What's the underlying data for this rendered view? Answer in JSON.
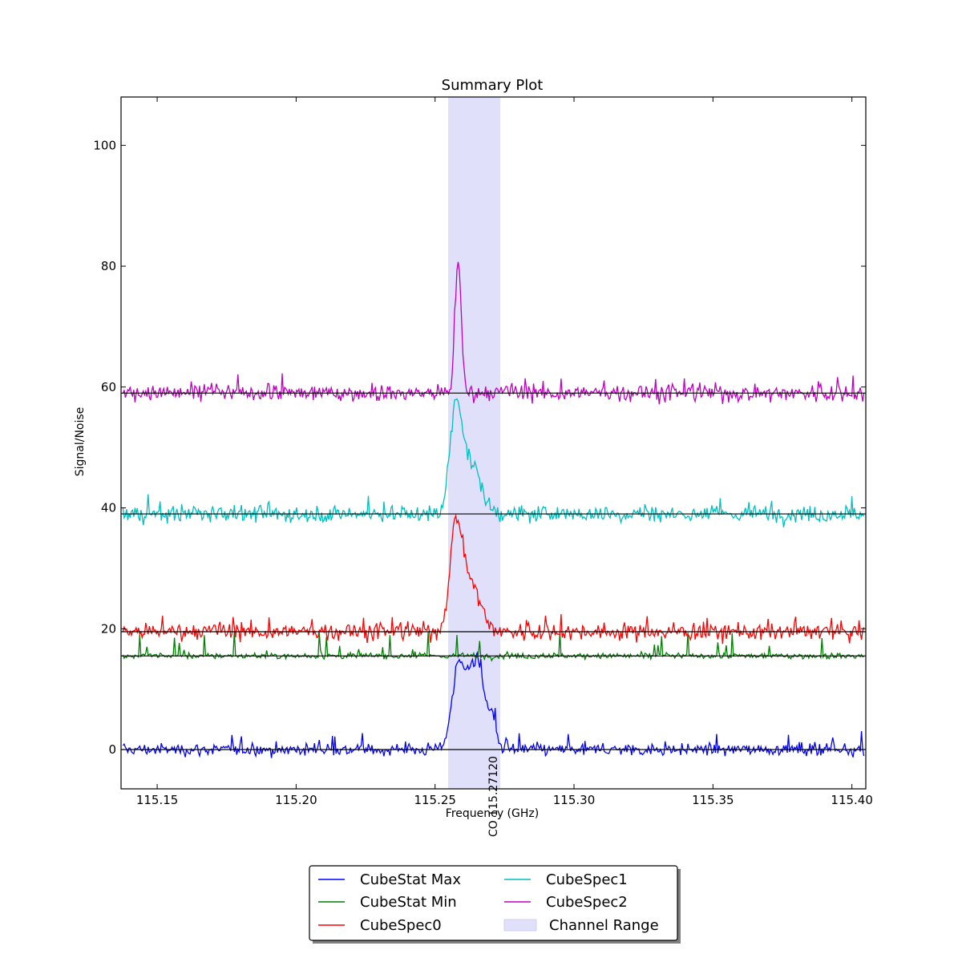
{
  "chart_data": {
    "type": "line",
    "title": "Summary Plot",
    "xlabel": "Frequency (GHz)",
    "ylabel": "Signal/Noise",
    "xlim": [
      115.137,
      115.405
    ],
    "ylim": [
      -6.5,
      108
    ],
    "xticks": [
      115.15,
      115.2,
      115.25,
      115.3,
      115.35,
      115.4
    ],
    "xtick_labels": [
      "115.15",
      "115.20",
      "115.25",
      "115.30",
      "115.35",
      "115.40"
    ],
    "yticks": [
      0,
      20,
      40,
      60,
      80,
      100
    ],
    "ytick_labels": [
      "0",
      "20",
      "40",
      "60",
      "80",
      "100"
    ],
    "grid": false,
    "legend_position": "below",
    "channel_range": {
      "name": "Channel Range",
      "x": [
        115.2547,
        115.2735
      ],
      "color": "#e0e0fb"
    },
    "annotation": {
      "text": "CO 115.27120",
      "x": 115.2712
    },
    "series": [
      {
        "name": "CubeStat Max",
        "color": "#0000ff",
        "baseline": 0,
        "noise": 1.0,
        "spikiness": 1.4,
        "peaks": [
          {
            "x": 115.2585,
            "height": 11,
            "width": 0.0025
          },
          {
            "x": 115.2655,
            "height": 11,
            "width": 0.0025
          },
          {
            "x": 115.2618,
            "height": 5,
            "width": 0.0035
          },
          {
            "x": 115.2705,
            "height": 4.5,
            "width": 0.0015
          }
        ]
      },
      {
        "name": "CubeStat Min",
        "color": "#007f00",
        "baseline": 15.5,
        "noise": 0.5,
        "spikiness": 1.6,
        "peaks": []
      },
      {
        "name": "CubeSpec0",
        "color": "#ff0000",
        "baseline": 19.5,
        "noise": 1.4,
        "spikiness": 1.0,
        "peaks": [
          {
            "x": 115.2575,
            "height": 16.5,
            "width": 0.0022
          },
          {
            "x": 115.2628,
            "height": 8,
            "width": 0.0035
          }
        ]
      },
      {
        "name": "CubeSpec1",
        "color": "#00bfbf",
        "baseline": 39,
        "noise": 1.4,
        "spikiness": 1.0,
        "peaks": [
          {
            "x": 115.2575,
            "height": 16.5,
            "width": 0.0022
          },
          {
            "x": 115.2628,
            "height": 8,
            "width": 0.0035
          }
        ]
      },
      {
        "name": "CubeSpec2",
        "color": "#bf00bf",
        "baseline": 59,
        "noise": 1.4,
        "spikiness": 1.0,
        "peaks": [
          {
            "x": 115.2583,
            "height": 22,
            "width": 0.0011
          }
        ]
      }
    ],
    "baselines": [
      0,
      15.5,
      19.5,
      39,
      59
    ]
  }
}
